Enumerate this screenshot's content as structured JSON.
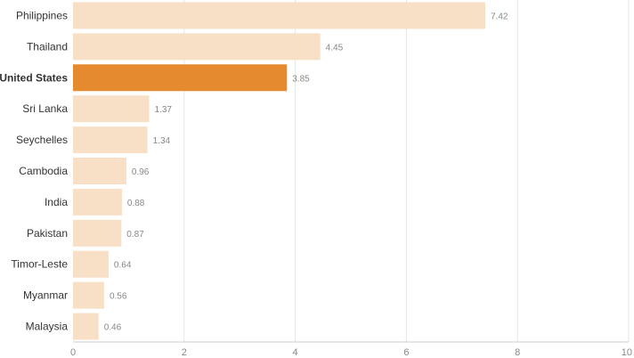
{
  "chart_data": {
    "type": "bar",
    "orientation": "horizontal",
    "categories": [
      "Philippines",
      "Thailand",
      "United States",
      "Sri Lanka",
      "Seychelles",
      "Cambodia",
      "India",
      "Pakistan",
      "Timor-Leste",
      "Myanmar",
      "Malaysia"
    ],
    "values": [
      7.42,
      4.45,
      3.85,
      1.37,
      1.34,
      0.96,
      0.88,
      0.87,
      0.64,
      0.56,
      0.46
    ],
    "value_labels": [
      "7.42",
      "4.45",
      "3.85",
      "1.37",
      "1.34",
      "0.96",
      "0.88",
      "0.87",
      "0.64",
      "0.56",
      "0.46"
    ],
    "highlight": "United States",
    "xlim": [
      0,
      10
    ],
    "xticks": [
      0,
      2,
      4,
      6,
      8,
      10
    ],
    "xtick_labels": [
      "0",
      "2",
      "4",
      "6",
      "8",
      "10"
    ],
    "grid": true,
    "colors": {
      "bar": "#f8e0c6",
      "highlight": "#e58a2e",
      "grid": "#e6e6e6",
      "axis": "#cccccc"
    }
  }
}
